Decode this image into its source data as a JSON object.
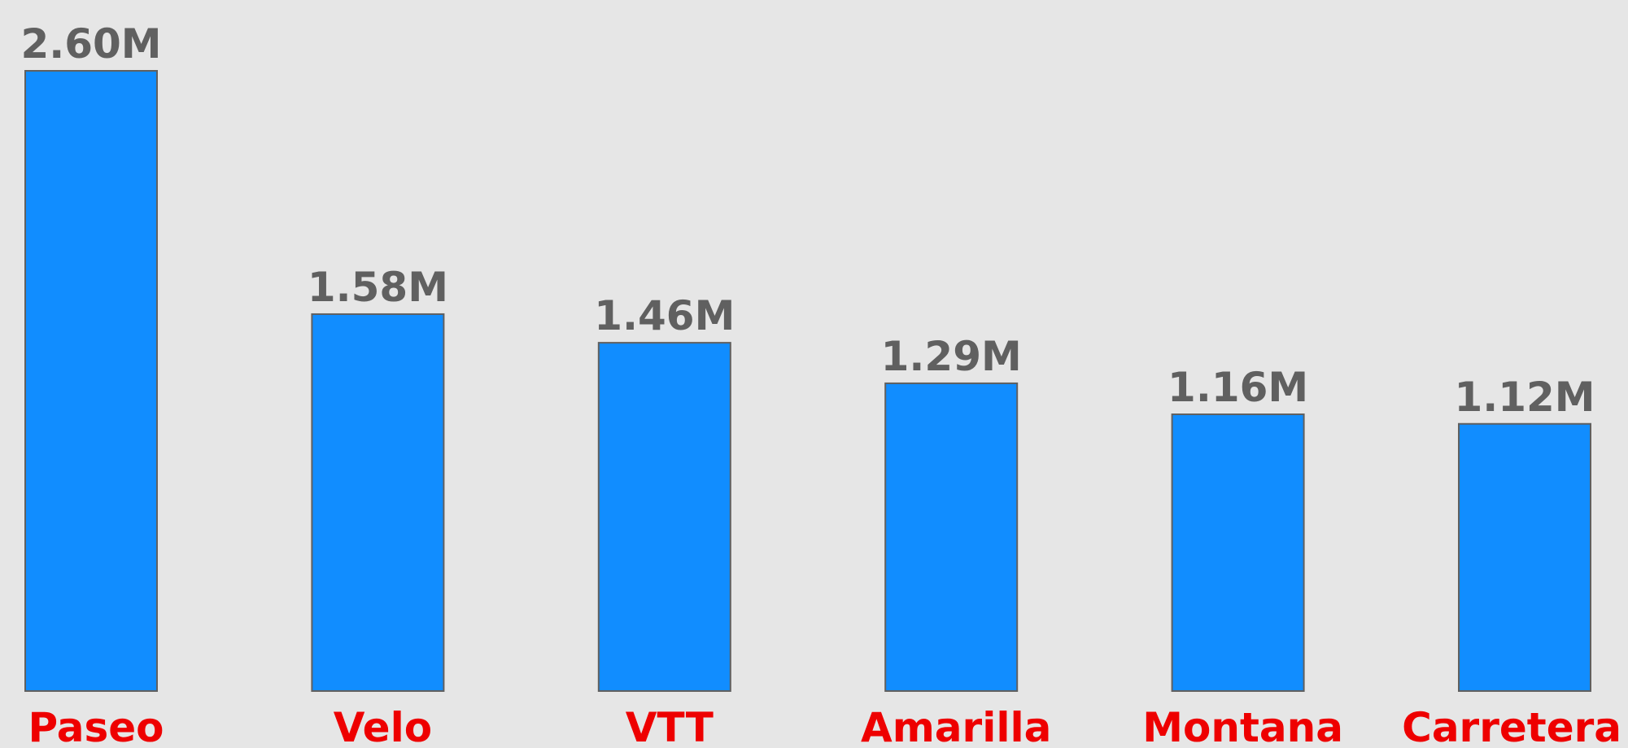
{
  "chart_data": {
    "type": "bar",
    "categories": [
      "Paseo",
      "Velo",
      "VTT",
      "Amarilla",
      "Montana",
      "Carretera"
    ],
    "values": [
      2600000,
      1580000,
      1460000,
      1290000,
      1160000,
      1120000
    ],
    "value_labels": [
      "2.60M",
      "1.58M",
      "1.46M",
      "1.29M",
      "1.16M",
      "1.12M"
    ],
    "color": "#118dff",
    "ylim": [
      0,
      2600000
    ]
  }
}
